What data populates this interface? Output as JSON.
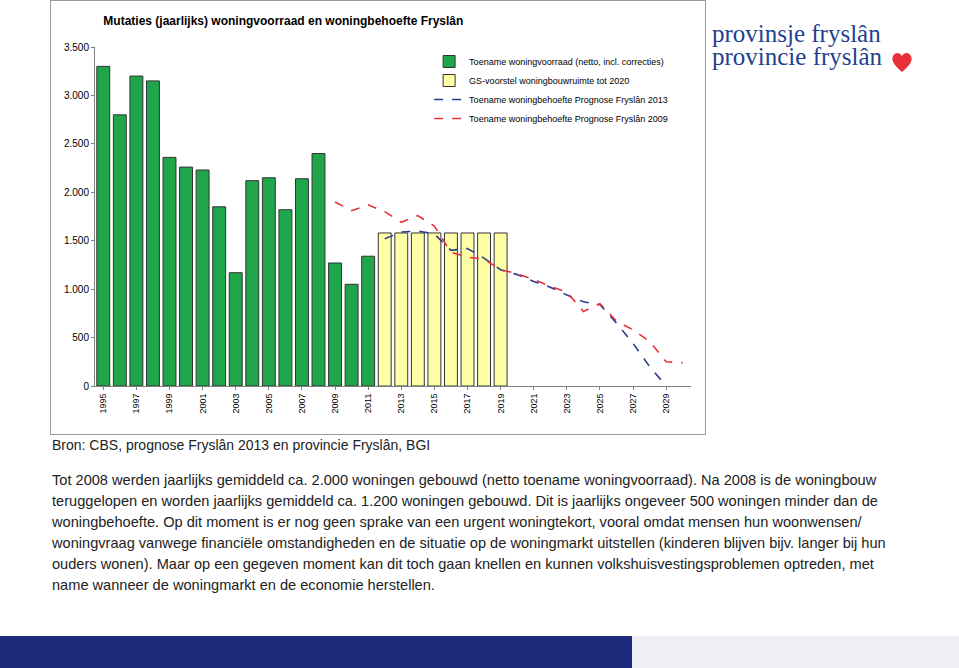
{
  "chart_data": {
    "type": "bar",
    "title": "Mutaties (jaarlijks) woningvoorraad en woningbehoefte Fryslân",
    "categories": [
      "1995",
      null,
      "1997",
      null,
      "1999",
      null,
      "2001",
      null,
      "2003",
      null,
      "2005",
      null,
      "2007",
      null,
      "2009",
      null,
      "2011",
      null,
      "2013",
      null,
      "2015",
      null,
      "2017",
      null,
      "2019",
      null,
      "2021",
      null,
      "2023",
      null,
      "2025",
      null,
      "2027",
      null,
      "2029",
      null
    ],
    "series": [
      {
        "name": "Toename woningvoorraad (netto, incl. correcties)",
        "type": "bar",
        "color": "#1fa64a",
        "values": [
          3300,
          2800,
          3200,
          3150,
          2360,
          2260,
          2230,
          1850,
          1170,
          2120,
          2150,
          1820,
          2140,
          2400,
          1270,
          1050,
          1340,
          null,
          null,
          null,
          null,
          null,
          null,
          null,
          null,
          null,
          null,
          null,
          null,
          null,
          null,
          null,
          null,
          null,
          null,
          null
        ]
      },
      {
        "name": "GS-voorstel woningbouwruimte tot 2020",
        "type": "bar",
        "color": "#ffffa6",
        "values": [
          null,
          null,
          null,
          null,
          null,
          null,
          null,
          null,
          null,
          null,
          null,
          null,
          null,
          null,
          null,
          null,
          null,
          1580,
          1580,
          1580,
          1580,
          1580,
          1580,
          1580,
          1580,
          null,
          null,
          null,
          null,
          null,
          null,
          null,
          null,
          null,
          null,
          null
        ]
      },
      {
        "name": "Toename woningbehoefte Prognose Fryslân 2013",
        "type": "line",
        "line_style": "dashed",
        "color": "#2b3c8c",
        "values": [
          null,
          null,
          null,
          null,
          null,
          null,
          null,
          null,
          null,
          null,
          null,
          null,
          null,
          null,
          null,
          null,
          null,
          1520,
          1590,
          1600,
          1570,
          1400,
          1420,
          1320,
          1200,
          1150,
          1080,
          1020,
          940,
          870,
          840,
          650,
          440,
          200,
          0,
          null
        ]
      },
      {
        "name": "Toename woningbehoefte Prognose Fryslân 2009",
        "type": "line",
        "line_style": "dashed",
        "color": "#e8303a",
        "values": [
          null,
          null,
          null,
          null,
          null,
          null,
          null,
          null,
          null,
          null,
          null,
          null,
          null,
          null,
          1900,
          1810,
          1870,
          1800,
          1690,
          1760,
          1650,
          1380,
          1330,
          1310,
          1200,
          1160,
          1100,
          1030,
          970,
          770,
          850,
          670,
          580,
          460,
          250,
          240
        ]
      }
    ],
    "ylim": [
      0,
      3500
    ],
    "yticks": [
      0,
      500,
      {
        "value": 1000,
        "label": "1.000"
      },
      {
        "value": 1500,
        "label": "1.500"
      },
      {
        "value": 2000,
        "label": "2.000"
      },
      {
        "value": 2500,
        "label": "2.500"
      },
      {
        "value": 3000,
        "label": "3.000"
      },
      {
        "value": 3500,
        "label": "3.500"
      }
    ],
    "grid": false,
    "legend": "top right"
  },
  "page": {
    "logo": [
      "provinsje fryslân",
      "provincie fryslân"
    ],
    "source": "Bron: CBS, prognose Fryslân 2013 en provincie Fryslân, BGI",
    "text": "Tot 2008 werden jaarlijks gemiddeld ca. 2.000 woningen gebouwd (netto toename woningvoorraad). Na 2008 is de woningbouw teruggelopen en worden jaarlijks gemiddeld ca. 1.200 woningen gebouwd. Dit is jaarlijks ongeveer 500 woningen minder dan de woningbehoefte. Op dit moment is er nog geen sprake van een urgent woningtekort, vooral omdat mensen hun woonwensen/ woningvraag vanwege financiële omstandigheden en de situatie op de woningmarkt uitstellen (kinderen blijven bijv. langer bij hun ouders wonen). Maar op een gegeven moment kan dit toch gaan knellen en kunnen volkshuisvestingsproblemen optreden, met name wanneer de woningmarkt en de economie herstellen."
  }
}
